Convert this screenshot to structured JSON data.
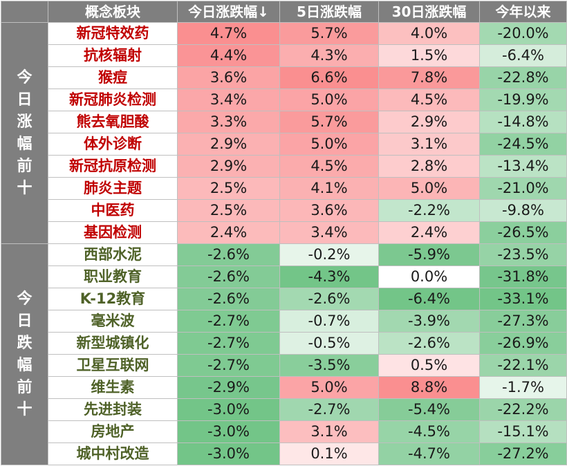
{
  "header": {
    "col_group": "",
    "col_name": "概念板块",
    "col_today": "今日涨跌幅↓",
    "col_5d": "5日涨跌幅",
    "col_30d": "30日涨跌幅",
    "col_ytd": "今年以来"
  },
  "groups": {
    "gainers": [
      "今",
      "日",
      "涨",
      "幅",
      "前",
      "十"
    ],
    "losers": [
      "今",
      "日",
      "跌",
      "幅",
      "前",
      "十"
    ]
  },
  "colors": {
    "name_up": "#c00000",
    "name_down": "#4f6228",
    "header_bg": "#7f7f7f",
    "positive_strong": "#f8696b",
    "negative_strong": "#63be7b"
  },
  "rows": [
    {
      "group": "gainers",
      "name": "新冠特效药",
      "today": "4.7%",
      "d5": "5.7%",
      "d30": "4.0%",
      "ytd": "-20.0%"
    },
    {
      "group": "gainers",
      "name": "抗核辐射",
      "today": "4.4%",
      "d5": "4.3%",
      "d30": "1.5%",
      "ytd": "-6.4%"
    },
    {
      "group": "gainers",
      "name": "猴痘",
      "today": "3.6%",
      "d5": "6.6%",
      "d30": "7.8%",
      "ytd": "-22.8%"
    },
    {
      "group": "gainers",
      "name": "新冠肺炎检测",
      "today": "3.4%",
      "d5": "5.0%",
      "d30": "4.5%",
      "ytd": "-19.9%"
    },
    {
      "group": "gainers",
      "name": "熊去氧胆酸",
      "today": "3.3%",
      "d5": "5.7%",
      "d30": "2.9%",
      "ytd": "-14.8%"
    },
    {
      "group": "gainers",
      "name": "体外诊断",
      "today": "2.9%",
      "d5": "5.0%",
      "d30": "3.1%",
      "ytd": "-24.5%"
    },
    {
      "group": "gainers",
      "name": "新冠抗原检测",
      "today": "2.9%",
      "d5": "4.5%",
      "d30": "2.8%",
      "ytd": "-13.4%"
    },
    {
      "group": "gainers",
      "name": "肺炎主题",
      "today": "2.5%",
      "d5": "4.1%",
      "d30": "5.0%",
      "ytd": "-21.0%"
    },
    {
      "group": "gainers",
      "name": "中医药",
      "today": "2.5%",
      "d5": "3.6%",
      "d30": "-2.2%",
      "ytd": "-9.8%"
    },
    {
      "group": "gainers",
      "name": "基因检测",
      "today": "2.4%",
      "d5": "3.4%",
      "d30": "2.4%",
      "ytd": "-26.5%"
    },
    {
      "group": "losers",
      "name": "西部水泥",
      "today": "-2.6%",
      "d5": "-0.2%",
      "d30": "-5.9%",
      "ytd": "-23.5%"
    },
    {
      "group": "losers",
      "name": "职业教育",
      "today": "-2.6%",
      "d5": "-4.3%",
      "d30": "0.0%",
      "ytd": "-31.8%"
    },
    {
      "group": "losers",
      "name": "K-12教育",
      "today": "-2.6%",
      "d5": "-2.6%",
      "d30": "-6.4%",
      "ytd": "-33.1%"
    },
    {
      "group": "losers",
      "name": "毫米波",
      "today": "-2.7%",
      "d5": "-0.7%",
      "d30": "-3.9%",
      "ytd": "-27.3%"
    },
    {
      "group": "losers",
      "name": "新型城镇化",
      "today": "-2.7%",
      "d5": "-0.5%",
      "d30": "-2.6%",
      "ytd": "-26.9%"
    },
    {
      "group": "losers",
      "name": "卫星互联网",
      "today": "-2.7%",
      "d5": "-3.5%",
      "d30": "0.5%",
      "ytd": "-22.1%"
    },
    {
      "group": "losers",
      "name": "维生素",
      "today": "-2.9%",
      "d5": "5.0%",
      "d30": "8.8%",
      "ytd": "-1.7%"
    },
    {
      "group": "losers",
      "name": "先进封装",
      "today": "-3.0%",
      "d5": "-2.7%",
      "d30": "-5.4%",
      "ytd": "-22.2%"
    },
    {
      "group": "losers",
      "name": "房地产",
      "today": "-3.0%",
      "d5": "3.1%",
      "d30": "-4.5%",
      "ytd": "-15.1%"
    },
    {
      "group": "losers",
      "name": "城中村改造",
      "today": "-3.0%",
      "d5": "0.1%",
      "d30": "-4.7%",
      "ytd": "-27.2%"
    }
  ]
}
